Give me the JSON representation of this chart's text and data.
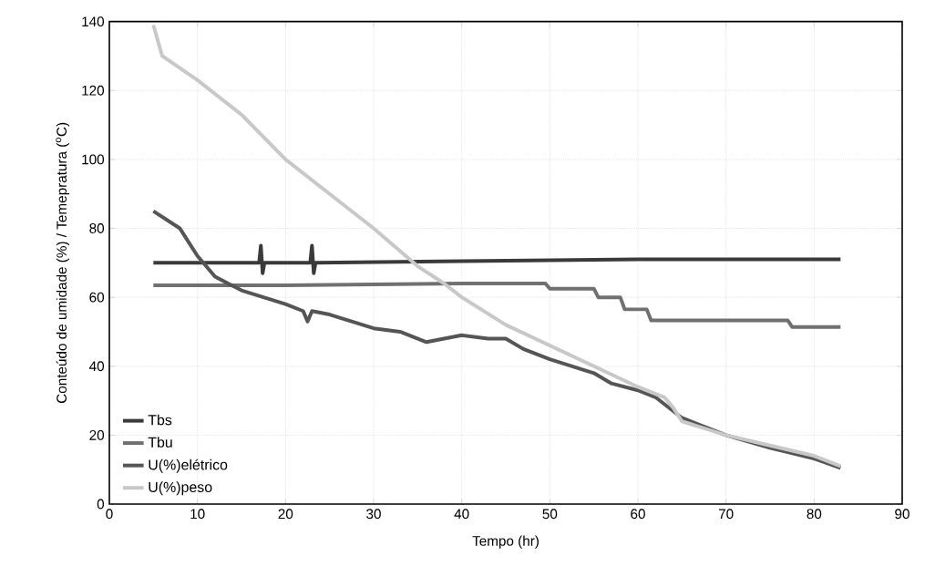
{
  "chart_data": {
    "type": "line",
    "xlabel": "Tempo (hr)",
    "ylabel": "Conteúdo de umidade (%) / Temepratura ($^{o}$C)",
    "xlim": [
      0,
      90
    ],
    "ylim": [
      0,
      140
    ],
    "xticks": [
      0,
      10,
      20,
      30,
      40,
      50,
      60,
      70,
      80,
      90
    ],
    "yticks": [
      0,
      20,
      40,
      60,
      80,
      100,
      120,
      140
    ],
    "grid": true,
    "legend": "bottom left",
    "marker": "none",
    "line_style": "solid",
    "series": [
      {
        "name": "Tbs",
        "color": "#3a3a3a",
        "x": [
          5,
          10,
          17,
          17.2,
          17.4,
          17.6,
          22.8,
          23,
          23.2,
          23.4,
          40,
          60,
          83
        ],
        "values": [
          70,
          70,
          70,
          75,
          67,
          70,
          70,
          75,
          67,
          70,
          70.5,
          71,
          71
        ]
      },
      {
        "name": "Tbu",
        "color": "#707070",
        "x": [
          5,
          20,
          40,
          49.5,
          50,
          55,
          55.5,
          58,
          58.5,
          61,
          61.5,
          77,
          77.5,
          83
        ],
        "values": [
          63.5,
          63.5,
          64,
          64,
          62.5,
          62.5,
          60,
          60,
          56.5,
          56.5,
          53.3,
          53.3,
          51.4,
          51.4
        ]
      },
      {
        "name": "U(%)elétrico",
        "color": "#555555",
        "x": [
          5,
          8,
          10,
          12,
          15,
          20,
          22,
          22.5,
          23,
          25,
          30,
          33,
          36,
          40,
          43,
          45,
          47,
          50,
          55,
          57,
          60,
          62,
          65,
          70,
          75,
          80,
          83
        ],
        "values": [
          85,
          80,
          72,
          66,
          62,
          58,
          56,
          53,
          56,
          55,
          51,
          50,
          47,
          49,
          48,
          48,
          45,
          42,
          38,
          35,
          33,
          31,
          25,
          20,
          16.3,
          13.2,
          10.5
        ]
      },
      {
        "name": "U(%)peso",
        "color": "#c8c8c8",
        "x": [
          5,
          6,
          10,
          15,
          20,
          25,
          30,
          35,
          38,
          40,
          45,
          50,
          55,
          60,
          63,
          64,
          65,
          70,
          75,
          80,
          83
        ],
        "values": [
          139,
          130,
          123,
          113,
          100,
          90,
          80,
          69,
          64,
          60,
          52,
          46,
          40,
          34,
          31,
          28,
          24,
          20,
          17,
          14,
          11
        ]
      }
    ]
  }
}
